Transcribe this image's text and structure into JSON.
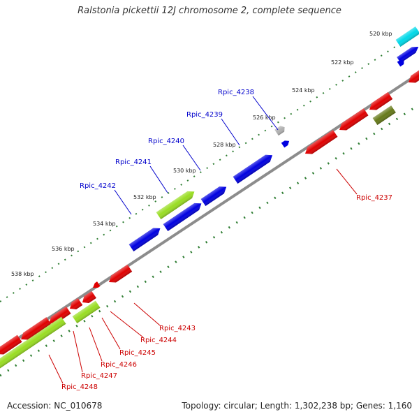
{
  "title": "Ralstonia pickettii 12J chromosome 2, complete sequence",
  "accession_text": "Accession: NC_010678",
  "summary_text": "Topology: circular; Length: 1,302,238 bp; Genes: 1,160",
  "colors": {
    "backbone": "#8c8c8c",
    "tick_dots": "#2e7d32",
    "forward_label": "#0000cc",
    "reverse_label": "#cc0000",
    "gene_blue": "#0000e0",
    "gene_red": "#e00000",
    "gene_lime": "#99dd22",
    "gene_olive": "#667a1a",
    "gene_cyan": "#00d8e8",
    "gene_gray": "#b0b0b0"
  },
  "scale_labels": [
    "520 kbp",
    "522 kbp",
    "524 kbp",
    "526 kbp",
    "528 kbp",
    "530 kbp",
    "532 kbp",
    "534 kbp",
    "536 kbp",
    "538 kbp"
  ],
  "forward_gene_labels": [
    "Rpic_4238",
    "Rpic_4239",
    "Rpic_4240",
    "Rpic_4241",
    "Rpic_4242"
  ],
  "reverse_gene_labels": [
    "Rpic_4237",
    "Rpic_4243",
    "Rpic_4244",
    "Rpic_4245",
    "Rpic_4246",
    "Rpic_4247",
    "Rpic_4248"
  ]
}
